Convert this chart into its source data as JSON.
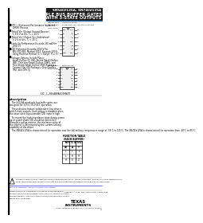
{
  "bg_color": "#ffffff",
  "header_title_line1": "SN54LV125A, SN74LV125A",
  "header_title_line2": "QUADRUPLE BUS BUFFER GATES",
  "header_title_line3": "WITH 3-STATE OUTPUTS",
  "bullet_points": [
    "EPIC™ (Enhanced-Performance Implanted\n  CMOS) Process",
    "Typical Vᴏᴴ (Output Ground Bounce)\n  < 0.8 V at Vᴄᴄ, Tₐ = 25°C",
    "Typical Vᴏᴹ (Output Vᴄᴄ Undershoot)\n  < 2 V at Vᴄᴄ, Tₐ = 25°C",
    "Latch-Up Performance Exceeds 250 mA Per\n  JESD 17",
    "ESD Protection Exceeds 2000 V Per\n  MIL-STD-883, Method 3015; Exceeds 200 V\n  Using Machine Method (C = 200 pF, R = 0)",
    "Package Options Include Plastic\n  Small-Outline (D, DB), Shrink Small-Outline\n  (NS), Thin Very Small-Outline (GNV), and\n  Thin Shrink Small-Outline (PW) Packages,\n  Ceramic Flat (W) Packages, Chip Carriers\n  (FK), and DIPs (J)"
  ],
  "pkg1_line1": "SN54LV125A ... J OR W PACKAGE",
  "pkg1_line2": "SN74LV125A ... D, DB, DGV, NS AND PW PACKAGES",
  "pkg1_line3": "(TOP VIEW)",
  "pkg2_line1": "SN74LV125A ... DB PACKAGE",
  "pkg2_line2": "(TOP VIEW)",
  "fig_label": "FIG. 1—PIN ARRANGEMENT",
  "pin_labels_left": [
    "1OE",
    "1A",
    "1Y",
    "2OE",
    "2A",
    "2Y",
    "GND"
  ],
  "pin_labels_right": [
    "VCC",
    "4Y",
    "4A",
    "4OE",
    "3Y",
    "3A",
    "3OE"
  ],
  "pin_nums_left": [
    "1",
    "2",
    "3",
    "4",
    "5",
    "6",
    "7"
  ],
  "pin_nums_right": [
    "14",
    "13",
    "12",
    "11",
    "10",
    "9",
    "8"
  ],
  "section_description": "description",
  "desc_paragraphs": [
    "   The LV125A quadruple bus buffer gates are\ndesigned for 3-V to 3.6-V VCC operation.",
    "   These devices feature independent line drivers\nwith 3-state outputs. Each output is disabled when\nthe associated output-enable (OE) input is high.",
    "   To ensure the high-impedance state during power\nup or power down, OE should be tied to VCC\nthrough a pullup resistor; the minimum value of\nthe resistor is determined by the current-sinking\ncapability of the driver.",
    "   The SN54LV125A is characterized for operation over the full military temperature range of -55°C to 125°C. The SN74LV125A is characterized for operation from -40°C to 85°C."
  ],
  "table_title_line1": "FUNCTION TABLE",
  "table_title_line2": "(EACH BUFFER)",
  "table_col_header1": "INPUTS",
  "table_col_header2": "OUTPUT",
  "table_subheaders": [
    "OE",
    "A",
    "Y"
  ],
  "table_rows": [
    [
      "L",
      "L",
      "L"
    ],
    [
      "L",
      "H",
      "H"
    ],
    [
      "H",
      "X",
      "Z"
    ]
  ],
  "footer_warning": "Please be aware that an important notice concerning availability, standard warranty, and use in critical applications of Texas Instruments semiconductor products and disclaimers thereto appears at the end of this data sheet.",
  "footer_link": "EPIC is a trademark of Texas Instruments Incorporated.",
  "footer_legal_left": "PRODUCTION DATA information is current as of publication date.\nProducts conform to specifications per the terms of Texas Instruments\nstandard warranty. Production processing does not necessarily include\ntesting of all parameters.",
  "footer_copyright": "Copyright © 1998, Texas Instruments Incorporated",
  "footer_address": "POST OFFICE BOX 655303 • DALLAS, TEXAS 75265",
  "footer_page": "1",
  "text_color": "#000000",
  "line_color": "#000000",
  "header_bg": "#1a1a1a",
  "header_text_color": "#ffffff",
  "left_bar_color": "#000000",
  "blue_color": "#0000cc"
}
